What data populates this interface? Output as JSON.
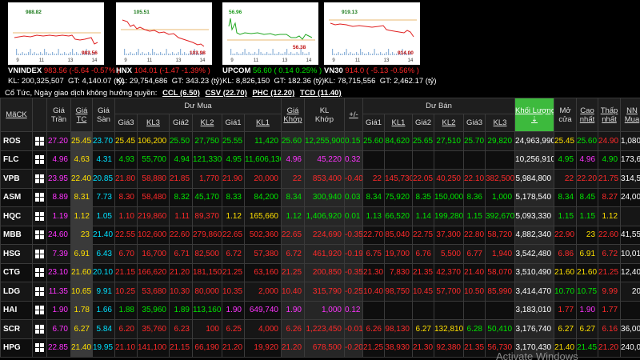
{
  "indices": [
    {
      "name": "VNINDEX",
      "value": "983.56",
      "change": "(-5.64",
      "pct": "-0.57%",
      "close": ")",
      "kl": "200,325,507",
      "gt": "4,140.07",
      "high_label": "988.82",
      "low_label": "983.56",
      "color": "#ff2a2a",
      "dir": "down",
      "x_labels": [
        "9",
        "11",
        "13",
        "14"
      ]
    },
    {
      "name": "HNX",
      "value": "104.01",
      "change": "(-1.47",
      "pct": "-1.39%",
      "close": ")",
      "kl": "29,754,686",
      "gt": "343.23",
      "high_label": "105.51",
      "low_label": "103.98",
      "color": "#ff2a2a",
      "dir": "down",
      "x_labels": [
        "9",
        "11",
        "13",
        "14"
      ]
    },
    {
      "name": "UPCOM",
      "value": "56.60",
      "change": "( 0.14",
      "pct": "0.25%",
      "close": ")",
      "kl": "8,826,150",
      "gt": "182.36",
      "high_label": "56.96",
      "low_label": "56.38",
      "color": "#00e600",
      "dir": "up",
      "x_labels": [
        "9",
        "11",
        "13",
        "14"
      ]
    },
    {
      "name": "VN30",
      "value": "914.0",
      "change": "( -5.13",
      "pct": "-0.56%",
      "close": ")",
      "kl": "78,715,556",
      "gt": "2,462.17",
      "high_label": "919.13",
      "low_label": "914.00",
      "color": "#ff2a2a",
      "dir": "down",
      "x_labels": [
        "9",
        "11",
        "13",
        "14"
      ]
    }
  ],
  "labels": {
    "kl": "KL:",
    "gt": "GT:",
    "unit": "(tỷ)"
  },
  "dividends": {
    "prefix": "Cổ Tức, Ngày giao dịch không hưởng quyền:",
    "items": [
      "CCL (6.50)",
      "CSV (22.70)",
      "PHC (12.20)",
      "TCD (11.40)"
    ]
  },
  "headers": {
    "symbol": "MãCK",
    "ceil": [
      "Giá",
      "Trần"
    ],
    "ref": [
      "Giá",
      "TC"
    ],
    "floor": [
      "Giá",
      "Sàn"
    ],
    "bid_group": "Dư Mua",
    "bid_cols": [
      "Giá3",
      "KL3",
      "Giá2",
      "KL2",
      "Giá1",
      "KL1"
    ],
    "match_price": [
      "Giá",
      "Khớp"
    ],
    "match_vol": [
      "KL",
      "Khớp"
    ],
    "change": "+/-",
    "ask_group": "Dư Bán",
    "ask_cols": [
      "Giá1",
      "KL1",
      "Giá2",
      "KL2",
      "Giá3",
      "KL3"
    ],
    "total_vol": [
      "Khối Lượng",
      "⇣"
    ],
    "open": [
      "Mở",
      "cửa"
    ],
    "high": [
      "Cao",
      "nhất"
    ],
    "low": [
      "Thấp",
      "nhất"
    ],
    "foreign": [
      "NN",
      "Mua"
    ]
  },
  "rows": [
    {
      "sym": "ROS",
      "c": "27.20",
      "r": "25.45",
      "f": "23.70",
      "b3": "25.45",
      "bv3": "106,200",
      "b2": "25.50",
      "bv2": "27,750",
      "b1": "25.55",
      "bv1": "11,420",
      "mp": "25.60",
      "mv": "12,255,900",
      "ch": "0.15",
      "a1": "25.60",
      "av1": "84,620",
      "a2": "25.65",
      "av2": "27,510",
      "a3": "25.70",
      "av3": "29,820",
      "tv": "24,963,990",
      "o": "25.45",
      "h": "25.60",
      "l": "24.90",
      "nn": "1,080,000",
      "cl": {
        "b3": "y",
        "b2": "g",
        "b1": "g",
        "mp": "g",
        "ch": "g",
        "a1": "g",
        "a2": "g",
        "a3": "g",
        "o": "y",
        "h": "g",
        "l": "r"
      }
    },
    {
      "sym": "FLC",
      "c": "4.96",
      "r": "4.63",
      "f": "4.31",
      "b3": "4.93",
      "bv3": "55,700",
      "b2": "4.94",
      "bv2": "121,330",
      "b1": "4.95",
      "bv1": "11,606,130",
      "mp": "4.96",
      "mv": "45,220",
      "ch": "0.32",
      "a1": "",
      "av1": "",
      "a2": "",
      "av2": "",
      "a3": "",
      "av3": "",
      "tv": "10,256,910",
      "o": "4.95",
      "h": "4.96",
      "l": "4.90",
      "nn": "173,600",
      "cl": {
        "b3": "g",
        "b2": "g",
        "b1": "g",
        "mp": "p",
        "ch": "p",
        "o": "g",
        "h": "p",
        "l": "g"
      }
    },
    {
      "sym": "VPB",
      "c": "23.95",
      "r": "22.40",
      "f": "20.85",
      "b3": "21.80",
      "bv3": "58,880",
      "b2": "21.85",
      "bv2": "1,770",
      "b1": "21.90",
      "bv1": "20,000",
      "mp": "22",
      "mv": "853,400",
      "ch": "-0.40",
      "a1": "22",
      "av1": "145,730",
      "a2": "22.05",
      "av2": "40,250",
      "a3": "22.10",
      "av3": "382,500",
      "tv": "5,984,800",
      "o": "22",
      "h": "22.20",
      "l": "21.75",
      "nn": "314,500",
      "cl": {
        "b3": "r",
        "b2": "r",
        "b1": "r",
        "mp": "r",
        "ch": "r",
        "a1": "r",
        "a2": "r",
        "a3": "r",
        "o": "r",
        "h": "r",
        "l": "r"
      }
    },
    {
      "sym": "ASM",
      "c": "8.89",
      "r": "8.31",
      "f": "7.73",
      "b3": "8.30",
      "bv3": "58,480",
      "b2": "8.32",
      "bv2": "45,170",
      "b1": "8.33",
      "bv1": "84,200",
      "mp": "8.34",
      "mv": "300,940",
      "ch": "0.03",
      "a1": "8.34",
      "av1": "75,920",
      "a2": "8.35",
      "av2": "150,000",
      "a3": "8.36",
      "av3": "1,000",
      "tv": "5,178,540",
      "o": "8.34",
      "h": "8.45",
      "l": "8.27",
      "nn": "24,000",
      "cl": {
        "b3": "r",
        "b2": "g",
        "b1": "g",
        "mp": "g",
        "ch": "g",
        "a1": "g",
        "a2": "g",
        "a3": "g",
        "o": "g",
        "h": "g",
        "l": "r"
      }
    },
    {
      "sym": "HQC",
      "c": "1.19",
      "r": "1.12",
      "f": "1.05",
      "b3": "1.10",
      "bv3": "219,860",
      "b2": "1.11",
      "bv2": "89,370",
      "b1": "1.12",
      "bv1": "165,660",
      "mp": "1.12",
      "mv": "1,406,920",
      "ch": "0.01",
      "a1": "1.13",
      "av1": "66,520",
      "a2": "1.14",
      "av2": "199,280",
      "a3": "1.15",
      "av3": "392,670",
      "tv": "5,093,330",
      "o": "1.15",
      "h": "1.15",
      "l": "1.12",
      "nn": "",
      "cl": {
        "b3": "r",
        "b2": "r",
        "b1": "y",
        "mp": "g",
        "ch": "g",
        "a1": "g",
        "a2": "g",
        "a3": "g",
        "o": "g",
        "h": "g",
        "l": "y"
      }
    },
    {
      "sym": "MBB",
      "c": "24.60",
      "r": "23",
      "f": "21.40",
      "b3": "22.55",
      "bv3": "102,600",
      "b2": "22.60",
      "bv2": "279,860",
      "b1": "22.65",
      "bv1": "502,360",
      "mp": "22.65",
      "mv": "224,690",
      "ch": "-0.35",
      "a1": "22.70",
      "av1": "85,040",
      "a2": "22.75",
      "av2": "37,300",
      "a3": "22.80",
      "av3": "58,720",
      "tv": "4,882,340",
      "o": "22.90",
      "h": "23",
      "l": "22.60",
      "nn": "41,550",
      "cl": {
        "b3": "r",
        "b2": "r",
        "b1": "r",
        "mp": "r",
        "ch": "r",
        "a1": "r",
        "a2": "r",
        "a3": "r",
        "o": "r",
        "h": "y",
        "l": "r"
      }
    },
    {
      "sym": "HSG",
      "c": "7.39",
      "r": "6.91",
      "f": "6.43",
      "b3": "6.70",
      "bv3": "16,700",
      "b2": "6.71",
      "bv2": "82,500",
      "b1": "6.72",
      "bv1": "57,380",
      "mp": "6.72",
      "mv": "461,920",
      "ch": "-0.19",
      "a1": "6.75",
      "av1": "19,700",
      "a2": "6.76",
      "av2": "5,500",
      "a3": "6.77",
      "av3": "1,940",
      "tv": "3,542,480",
      "o": "6.86",
      "h": "6.91",
      "l": "6.72",
      "nn": "10,010",
      "cl": {
        "b3": "r",
        "b2": "r",
        "b1": "r",
        "mp": "r",
        "ch": "r",
        "a1": "r",
        "a2": "r",
        "a3": "r",
        "o": "r",
        "h": "y",
        "l": "r"
      }
    },
    {
      "sym": "CTG",
      "c": "23.10",
      "r": "21.60",
      "f": "20.10",
      "b3": "21.15",
      "bv3": "166,620",
      "b2": "21.20",
      "bv2": "181,150",
      "b1": "21.25",
      "bv1": "63,160",
      "mp": "21.25",
      "mv": "200,850",
      "ch": "-0.35",
      "a1": "21.30",
      "av1": "7,830",
      "a2": "21.35",
      "av2": "42,370",
      "a3": "21.40",
      "av3": "58,070",
      "tv": "3,510,490",
      "o": "21.60",
      "h": "21.60",
      "l": "21.25",
      "nn": "12,400",
      "cl": {
        "b3": "r",
        "b2": "r",
        "b1": "r",
        "mp": "r",
        "ch": "r",
        "a1": "r",
        "a2": "r",
        "a3": "r",
        "o": "y",
        "h": "y",
        "l": "r"
      }
    },
    {
      "sym": "LDG",
      "c": "11.35",
      "r": "10.65",
      "f": "9.91",
      "b3": "10.25",
      "bv3": "53,680",
      "b2": "10.30",
      "bv2": "80,000",
      "b1": "10.35",
      "bv1": "2,000",
      "mp": "10.40",
      "mv": "315,790",
      "ch": "-0.25",
      "a1": "10.40",
      "av1": "98,750",
      "a2": "10.45",
      "av2": "57,700",
      "a3": "10.50",
      "av3": "85,990",
      "tv": "3,414,470",
      "o": "10.70",
      "h": "10.75",
      "l": "9.99",
      "nn": "20",
      "cl": {
        "b3": "r",
        "b2": "r",
        "b1": "r",
        "mp": "r",
        "ch": "r",
        "a1": "r",
        "a2": "r",
        "a3": "r",
        "o": "g",
        "h": "g",
        "l": "r"
      }
    },
    {
      "sym": "HAI",
      "c": "1.90",
      "r": "1.78",
      "f": "1.66",
      "b3": "1.88",
      "bv3": "35,960",
      "b2": "1.89",
      "bv2": "113,160",
      "b1": "1.90",
      "bv1": "649,740",
      "mp": "1.90",
      "mv": "1,000",
      "ch": "0.12",
      "a1": "",
      "av1": "",
      "a2": "",
      "av2": "",
      "a3": "",
      "av3": "",
      "tv": "3,183,010",
      "o": "1.77",
      "h": "1.90",
      "l": "1.77",
      "nn": "",
      "cl": {
        "b3": "g",
        "b2": "g",
        "b1": "p",
        "mp": "p",
        "ch": "p",
        "o": "r",
        "h": "p",
        "l": "r"
      }
    },
    {
      "sym": "SCR",
      "c": "6.70",
      "r": "6.27",
      "f": "5.84",
      "b3": "6.20",
      "bv3": "35,760",
      "b2": "6.23",
      "bv2": "100",
      "b1": "6.25",
      "bv1": "4,000",
      "mp": "6.26",
      "mv": "1,223,450",
      "ch": "-0.01",
      "a1": "6.26",
      "av1": "98,130",
      "a2": "6.27",
      "av2": "132,810",
      "a3": "6.28",
      "av3": "50,410",
      "tv": "3,176,740",
      "o": "6.27",
      "h": "6.27",
      "l": "6.16",
      "nn": "36,000",
      "cl": {
        "b3": "r",
        "b2": "r",
        "b1": "r",
        "mp": "r",
        "ch": "r",
        "a1": "r",
        "a2": "y",
        "a3": "g",
        "o": "y",
        "h": "y",
        "l": "r"
      }
    },
    {
      "sym": "HPG",
      "c": "22.85",
      "r": "21.40",
      "f": "19.95",
      "b3": "21.10",
      "bv3": "141,100",
      "b2": "21.15",
      "bv2": "66,190",
      "b1": "21.20",
      "bv1": "19,920",
      "mp": "21.20",
      "mv": "678,500",
      "ch": "-0.20",
      "a1": "21.25",
      "av1": "38,930",
      "a2": "21.30",
      "av2": "92,380",
      "a3": "21.35",
      "av3": "56,730",
      "tv": "3,170,430",
      "o": "21.40",
      "h": "21.45",
      "l": "21.20",
      "nn": "240,070",
      "cl": {
        "b3": "r",
        "b2": "r",
        "b1": "r",
        "mp": "r",
        "ch": "r",
        "a1": "r",
        "a2": "r",
        "a3": "r",
        "o": "y",
        "h": "g",
        "l": "r"
      }
    }
  ],
  "watermark": "Activate Windows"
}
